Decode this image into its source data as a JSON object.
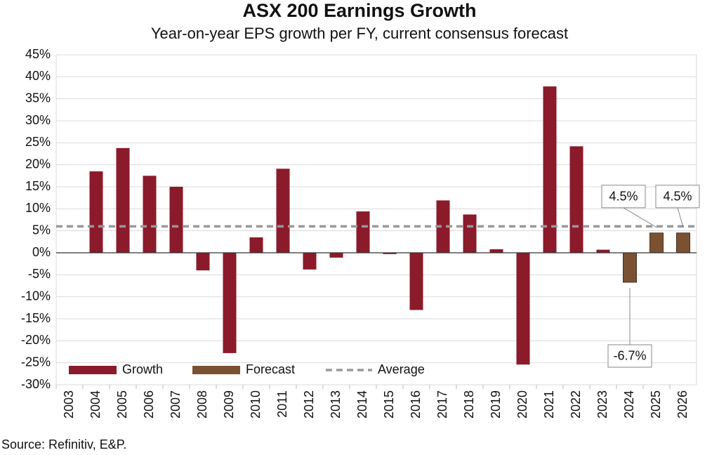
{
  "chart_data": {
    "type": "bar",
    "title": "ASX 200 Earnings Growth",
    "subtitle": "Year-on-year EPS growth per FY, current consensus forecast",
    "source": "Source: Refinitiv,  E&P.",
    "categories": [
      "2003",
      "2004",
      "2005",
      "2006",
      "2007",
      "2008",
      "2009",
      "2010",
      "2011",
      "2012",
      "2013",
      "2014",
      "2015",
      "2016",
      "2017",
      "2018",
      "2019",
      "2020",
      "2021",
      "2022",
      "2023",
      "2024",
      "2025",
      "2026"
    ],
    "series": [
      {
        "name": "Growth",
        "color": "#8b1a2b",
        "values": [
          null,
          18.5,
          23.8,
          17.5,
          15,
          -4,
          -22.8,
          3.5,
          19.1,
          -3.8,
          -1.1,
          9.4,
          -0.3,
          -13,
          11.9,
          8.7,
          0.8,
          -25.4,
          37.8,
          24.2,
          0.7,
          null,
          null,
          null
        ]
      },
      {
        "name": "Forecast",
        "color": "#7a5232",
        "values": [
          null,
          null,
          null,
          null,
          null,
          null,
          null,
          null,
          null,
          null,
          null,
          null,
          null,
          null,
          null,
          null,
          null,
          null,
          null,
          null,
          null,
          -6.7,
          4.5,
          4.5
        ],
        "value_labels": [
          null,
          null,
          null,
          null,
          null,
          null,
          null,
          null,
          null,
          null,
          null,
          null,
          null,
          null,
          null,
          null,
          null,
          null,
          null,
          null,
          null,
          "-6.7%",
          "4.5%",
          "4.5%"
        ]
      }
    ],
    "average": {
      "name": "Average",
      "value": 6,
      "color": "#999999"
    },
    "ylim": [
      -30,
      45
    ],
    "yticks": [
      {
        "value": -30,
        "label": "-30%"
      },
      {
        "value": -25,
        "label": "-25%"
      },
      {
        "value": -20,
        "label": "-20%"
      },
      {
        "value": -15,
        "label": "-15%"
      },
      {
        "value": -10,
        "label": "-10%"
      },
      {
        "value": -5,
        "label": "-5%"
      },
      {
        "value": 0,
        "label": "0%"
      },
      {
        "value": 5,
        "label": "5%"
      },
      {
        "value": 10,
        "label": "10%"
      },
      {
        "value": 15,
        "label": "15%"
      },
      {
        "value": 20,
        "label": "20%"
      },
      {
        "value": 25,
        "label": "25%"
      },
      {
        "value": 30,
        "label": "30%"
      },
      {
        "value": 35,
        "label": "35%"
      },
      {
        "value": 40,
        "label": "40%"
      },
      {
        "value": 45,
        "label": "45%"
      }
    ],
    "grid": true
  }
}
